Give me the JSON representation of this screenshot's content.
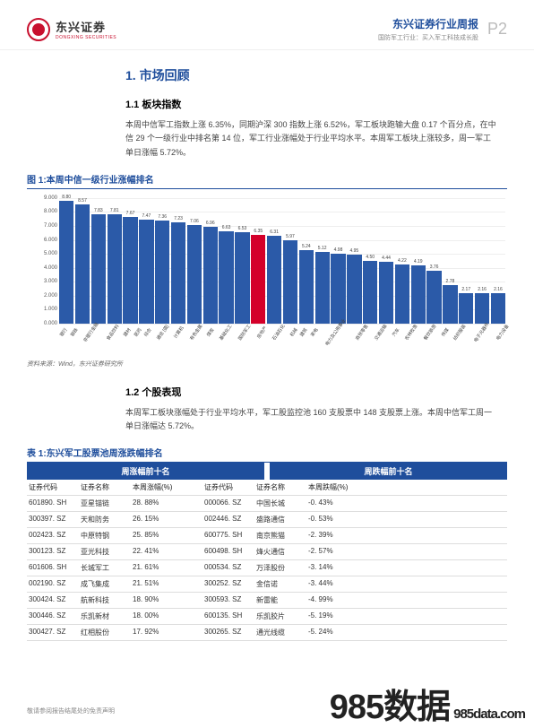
{
  "header": {
    "logo_cn": "东兴证券",
    "logo_en": "DONGXING SECURITIES",
    "report_title": "东兴证券行业周报",
    "report_sub": "国防军工行业：买入军工科技成长股",
    "page_no": "P2"
  },
  "watermark": {
    "big": "985数据",
    "sub": "985data.com"
  },
  "footer_note": "敬请参阅报告结尾处的免责声明",
  "section1": {
    "heading": "1. 市场回顾",
    "sub_heading": "1.1 板块指数",
    "paragraph": "本周中信军工指数上涨 6.35%，同期沪深 300 指数上涨 6.52%，军工板块跑输大盘 0.17 个百分点，在中信 29 个一级行业中排名第 14 位，军工行业涨幅处于行业平均水平。本周军工板块上涨较多，周一军工单日涨幅 5.72%。"
  },
  "figure1": {
    "title": "图 1:本周中信一级行业涨幅排名",
    "source": "资料来源：Wind，东兴证券研究所",
    "chart": {
      "type": "bar",
      "ylim": [
        0,
        9.0
      ],
      "ytick_step": 1.0,
      "background_color": "#ffffff",
      "grid_color": "#eeeeee",
      "bar_default_color": "#2b5aa8",
      "bar_highlight_color": "#d4002a",
      "value_fontsize": 5,
      "label_fontsize": 5,
      "y_label_fontsize": 6,
      "categories": [
        "银行",
        "钢铁",
        "非银行金融",
        "食品饮料",
        "建材",
        "医药",
        "综合",
        "通信 [值]",
        "计算机",
        "有色金属",
        "煤炭",
        "基础化工",
        "国防军工",
        "房地产",
        "石油石化",
        "机械",
        "建筑",
        "家电",
        "电力及公用事业",
        "商贸零售",
        "交通运输",
        "汽车",
        "农林牧渔",
        "餐饮旅游",
        "传媒",
        "纺织服装",
        "电子元器件",
        "电力设备"
      ],
      "values": [
        8.8,
        8.57,
        7.83,
        7.81,
        7.67,
        7.47,
        7.36,
        7.23,
        7.06,
        6.96,
        6.63,
        6.53,
        6.35,
        6.31,
        5.97,
        5.24,
        5.12,
        4.98,
        4.95,
        4.5,
        4.44,
        4.22,
        4.19,
        3.76,
        2.78,
        2.17,
        2.16,
        2.16
      ],
      "highlight_index": 12
    }
  },
  "section2": {
    "sub_heading": "1.2 个股表现",
    "paragraph": "本周军工板块涨幅处于行业平均水平，军工股监控池 160 支股票中 148 支股票上涨。本周中信军工周一单日涨幅达 5.72%。"
  },
  "table1": {
    "title": "表 1:东兴军工股票池周涨跌幅排名",
    "super_headers": [
      "周涨幅前十名",
      "周跌幅前十名"
    ],
    "columns_left": [
      "证券代码",
      "证券名称",
      "本周涨幅(%)"
    ],
    "columns_right": [
      "证券代码",
      "证券名称",
      "本周跌幅(%)"
    ],
    "rows": [
      {
        "l_code": "601890. SH",
        "l_name": "亚星锚链",
        "l_val": "28. 88%",
        "r_code": "000066. SZ",
        "r_name": "中国长城",
        "r_val": "-0. 43%"
      },
      {
        "l_code": "300397. SZ",
        "l_name": "天和防务",
        "l_val": "26. 15%",
        "r_code": "002446. SZ",
        "r_name": "盛路通信",
        "r_val": "-0. 53%"
      },
      {
        "l_code": "002423. SZ",
        "l_name": "中原特钢",
        "l_val": "25. 85%",
        "r_code": "600775. SH",
        "r_name": "南京熊猫",
        "r_val": "-2. 39%"
      },
      {
        "l_code": "300123. SZ",
        "l_name": "亚光科技",
        "l_val": "22. 41%",
        "r_code": "600498. SH",
        "r_name": "烽火通信",
        "r_val": "-2. 57%"
      },
      {
        "l_code": "601606. SH",
        "l_name": "长城军工",
        "l_val": "21. 61%",
        "r_code": "000534. SZ",
        "r_name": "万泽股份",
        "r_val": "-3. 14%"
      },
      {
        "l_code": "002190. SZ",
        "l_name": "成飞集成",
        "l_val": "21. 51%",
        "r_code": "300252. SZ",
        "r_name": "金信诺",
        "r_val": "-3. 44%"
      },
      {
        "l_code": "300424. SZ",
        "l_name": "航新科技",
        "l_val": "18. 90%",
        "r_code": "300593. SZ",
        "r_name": "新雷能",
        "r_val": "-4. 99%"
      },
      {
        "l_code": "300446. SZ",
        "l_name": "乐凯新材",
        "l_val": "18. 00%",
        "r_code": "600135. SH",
        "r_name": "乐凯胶片",
        "r_val": "-5. 19%"
      },
      {
        "l_code": "300427. SZ",
        "l_name": "红相股份",
        "l_val": "17. 92%",
        "r_code": "300265. SZ",
        "r_name": "通光线缆",
        "r_val": "-5. 24%"
      }
    ]
  }
}
